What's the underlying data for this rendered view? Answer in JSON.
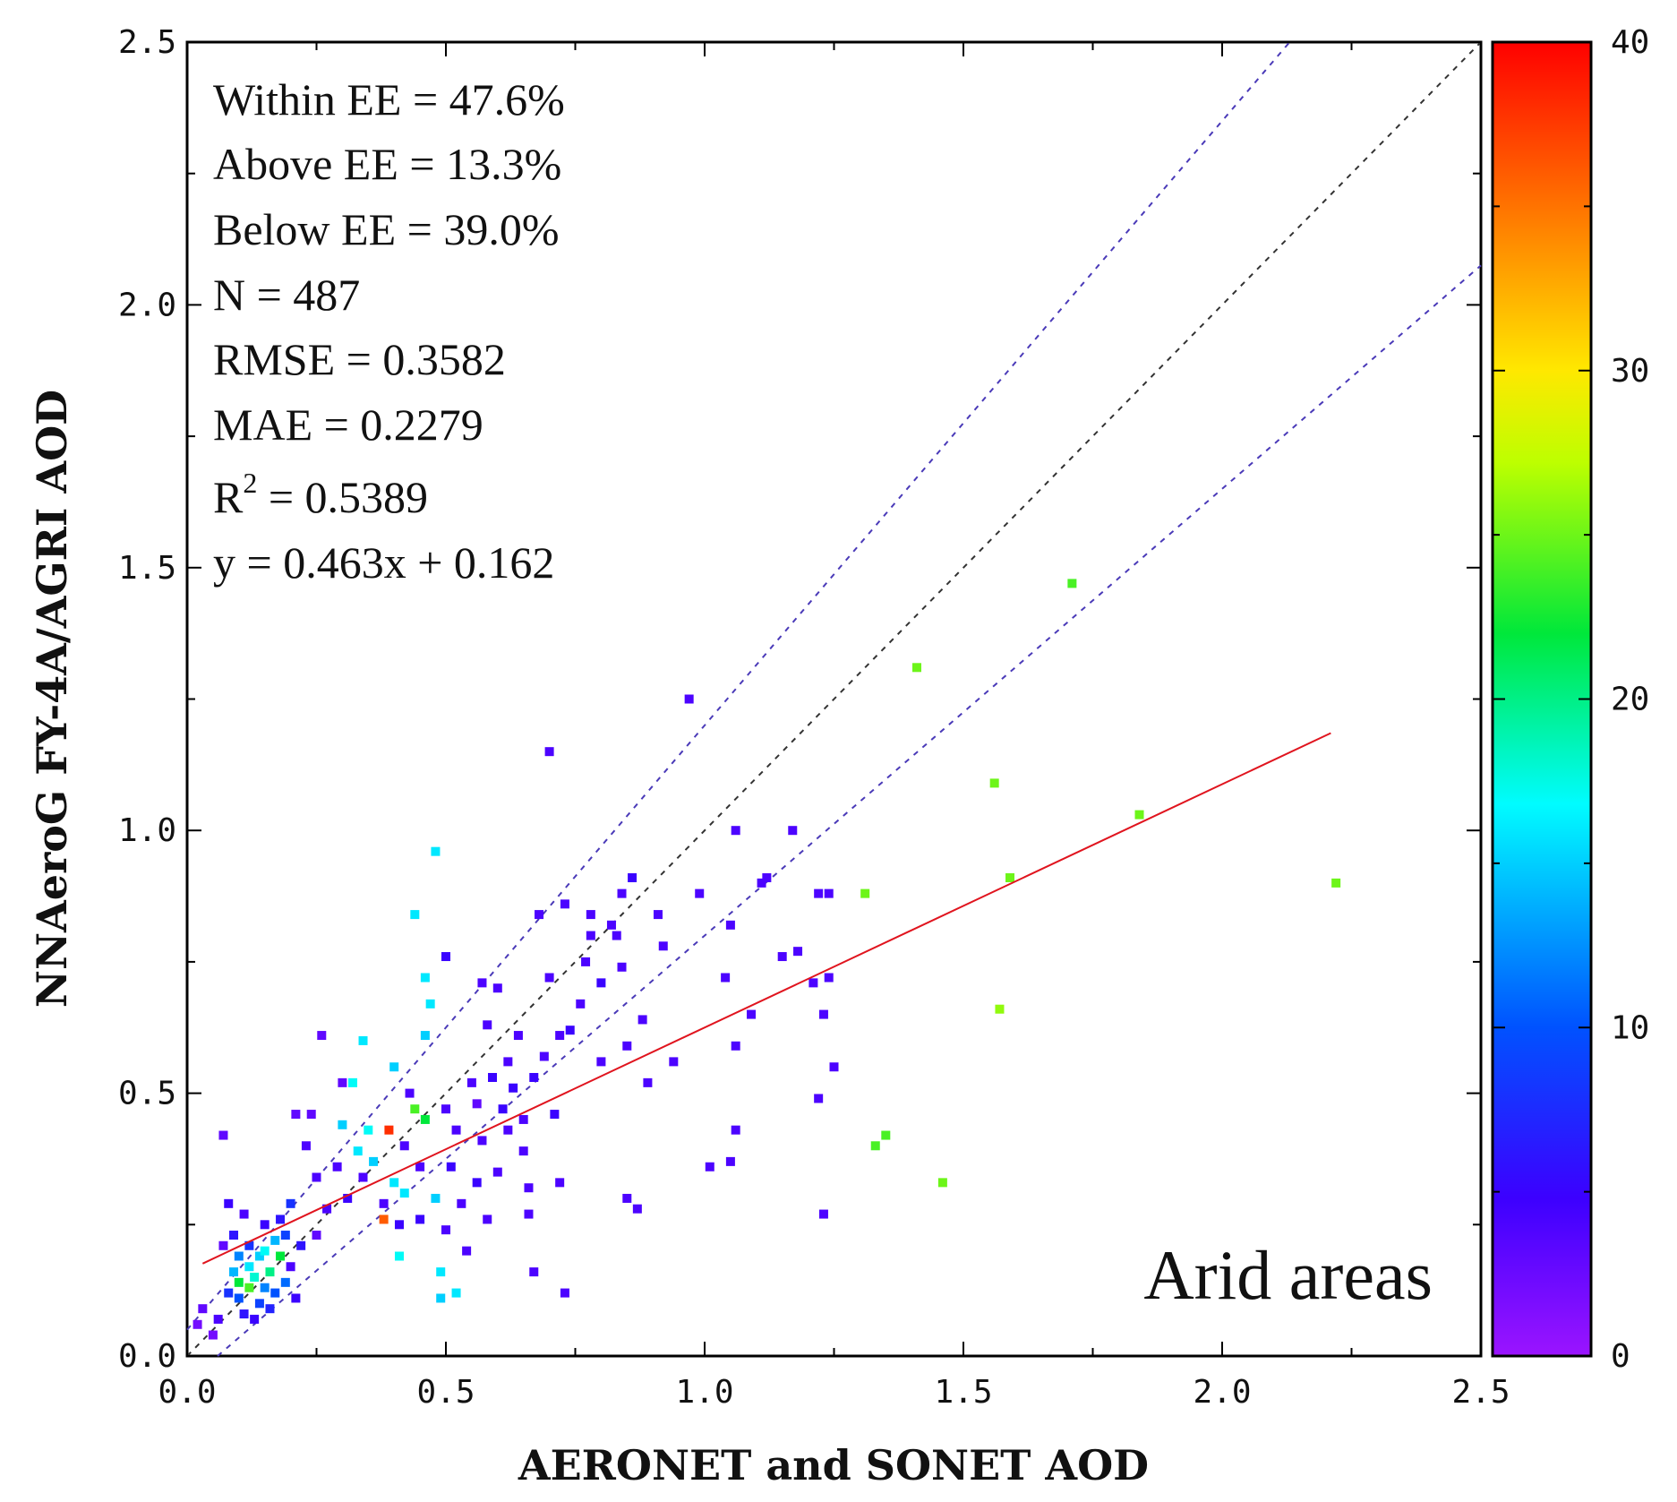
{
  "chart_data": {
    "type": "scatter",
    "xlabel": "AERONET and SONET AOD",
    "ylabel": "NNAeroG FY-4A/AGRI AOD",
    "xlim": [
      0,
      2.5
    ],
    "ylim": [
      0,
      2.5
    ],
    "x_ticks": [
      "0.0",
      "0.5",
      "1.0",
      "1.5",
      "2.0",
      "2.5"
    ],
    "y_ticks": [
      "0.0",
      "0.5",
      "1.0",
      "1.5",
      "2.0",
      "2.5"
    ],
    "region_label": "Arid areas",
    "stats": {
      "within_ee": "Within EE = 47.6%",
      "above_ee": "Above EE = 13.3%",
      "below_ee": "Below EE = 39.0%",
      "n": "N = 487",
      "rmse": "RMSE = 0.3582",
      "mae": "MAE = 0.2279",
      "r2_prefix": "R",
      "r2_sup": "2",
      "r2_value": " = 0.5389",
      "fit": "y = 0.463x + 0.162"
    },
    "fit_line": {
      "slope": 0.463,
      "intercept": 0.162,
      "x_start": 0.03,
      "x_end": 2.21,
      "color": "#e0141e"
    },
    "reference_lines": [
      {
        "name": "one-to-one",
        "slope": 1.0,
        "intercept": 0.0
      },
      {
        "name": "ee-upper",
        "slope": 1.15,
        "intercept": 0.05
      },
      {
        "name": "ee-lower",
        "slope": 0.85,
        "intercept": -0.05
      }
    ],
    "colorbar": {
      "min": 0,
      "max": 40,
      "ticks": [
        "0",
        "10",
        "20",
        "30",
        "40"
      ]
    },
    "points": [
      [
        0.02,
        0.06,
        2
      ],
      [
        0.03,
        0.09,
        3
      ],
      [
        0.05,
        0.04,
        2
      ],
      [
        0.06,
        0.07,
        4
      ],
      [
        0.07,
        0.42,
        3
      ],
      [
        0.07,
        0.21,
        3
      ],
      [
        0.08,
        0.12,
        8
      ],
      [
        0.08,
        0.29,
        5
      ],
      [
        0.09,
        0.16,
        14
      ],
      [
        0.09,
        0.23,
        6
      ],
      [
        0.1,
        0.14,
        22
      ],
      [
        0.1,
        0.19,
        12
      ],
      [
        0.1,
        0.11,
        10
      ],
      [
        0.11,
        0.27,
        4
      ],
      [
        0.11,
        0.08,
        6
      ],
      [
        0.12,
        0.13,
        24
      ],
      [
        0.12,
        0.17,
        16
      ],
      [
        0.12,
        0.21,
        8
      ],
      [
        0.13,
        0.15,
        18
      ],
      [
        0.13,
        0.07,
        5
      ],
      [
        0.14,
        0.19,
        15
      ],
      [
        0.14,
        0.1,
        9
      ],
      [
        0.15,
        0.2,
        17
      ],
      [
        0.15,
        0.13,
        12
      ],
      [
        0.15,
        0.25,
        5
      ],
      [
        0.16,
        0.16,
        20
      ],
      [
        0.16,
        0.09,
        7
      ],
      [
        0.17,
        0.22,
        14
      ],
      [
        0.17,
        0.12,
        10
      ],
      [
        0.18,
        0.19,
        22
      ],
      [
        0.18,
        0.26,
        6
      ],
      [
        0.19,
        0.14,
        11
      ],
      [
        0.19,
        0.23,
        9
      ],
      [
        0.2,
        0.29,
        8
      ],
      [
        0.2,
        0.17,
        4
      ],
      [
        0.21,
        0.46,
        3
      ],
      [
        0.21,
        0.11,
        5
      ],
      [
        0.22,
        0.21,
        6
      ],
      [
        0.23,
        0.4,
        4
      ],
      [
        0.24,
        0.46,
        3
      ],
      [
        0.25,
        0.34,
        4
      ],
      [
        0.25,
        0.23,
        3
      ],
      [
        0.26,
        0.61,
        3
      ],
      [
        0.27,
        0.28,
        4
      ],
      [
        0.29,
        0.36,
        4
      ],
      [
        0.3,
        0.52,
        3
      ],
      [
        0.3,
        0.44,
        15
      ],
      [
        0.31,
        0.3,
        5
      ],
      [
        0.32,
        0.52,
        17
      ],
      [
        0.33,
        0.39,
        16
      ],
      [
        0.34,
        0.6,
        16
      ],
      [
        0.34,
        0.34,
        4
      ],
      [
        0.35,
        0.43,
        17
      ],
      [
        0.36,
        0.37,
        15
      ],
      [
        0.38,
        0.29,
        4
      ],
      [
        0.38,
        0.26,
        36
      ],
      [
        0.39,
        0.43,
        38
      ],
      [
        0.4,
        0.55,
        15
      ],
      [
        0.4,
        0.33,
        16
      ],
      [
        0.41,
        0.19,
        17
      ],
      [
        0.41,
        0.25,
        5
      ],
      [
        0.42,
        0.4,
        4
      ],
      [
        0.42,
        0.31,
        16
      ],
      [
        0.43,
        0.5,
        4
      ],
      [
        0.44,
        0.84,
        16
      ],
      [
        0.44,
        0.47,
        24
      ],
      [
        0.45,
        0.36,
        4
      ],
      [
        0.45,
        0.26,
        5
      ],
      [
        0.46,
        0.72,
        16
      ],
      [
        0.46,
        0.45,
        22
      ],
      [
        0.46,
        0.61,
        15
      ],
      [
        0.47,
        0.67,
        16
      ],
      [
        0.48,
        0.96,
        16
      ],
      [
        0.48,
        0.3,
        15
      ],
      [
        0.49,
        0.16,
        16
      ],
      [
        0.49,
        0.11,
        15
      ],
      [
        0.5,
        0.76,
        5
      ],
      [
        0.5,
        0.47,
        4
      ],
      [
        0.5,
        0.24,
        4
      ],
      [
        0.51,
        0.36,
        5
      ],
      [
        0.52,
        0.12,
        16
      ],
      [
        0.52,
        0.43,
        4
      ],
      [
        0.53,
        0.29,
        4
      ],
      [
        0.54,
        0.2,
        4
      ],
      [
        0.55,
        0.52,
        4
      ],
      [
        0.56,
        0.33,
        5
      ],
      [
        0.56,
        0.48,
        3
      ],
      [
        0.57,
        0.71,
        4
      ],
      [
        0.57,
        0.41,
        4
      ],
      [
        0.58,
        0.63,
        4
      ],
      [
        0.58,
        0.26,
        4
      ],
      [
        0.59,
        0.53,
        5
      ],
      [
        0.6,
        0.7,
        4
      ],
      [
        0.6,
        0.35,
        4
      ],
      [
        0.61,
        0.47,
        5
      ],
      [
        0.62,
        0.56,
        4
      ],
      [
        0.62,
        0.43,
        4
      ],
      [
        0.63,
        0.51,
        5
      ],
      [
        0.64,
        0.61,
        4
      ],
      [
        0.65,
        0.45,
        4
      ],
      [
        0.65,
        0.39,
        4
      ],
      [
        0.66,
        0.32,
        4
      ],
      [
        0.66,
        0.27,
        4
      ],
      [
        0.67,
        0.53,
        5
      ],
      [
        0.67,
        0.16,
        4
      ],
      [
        0.68,
        0.84,
        4
      ],
      [
        0.69,
        0.57,
        4
      ],
      [
        0.7,
        1.15,
        4
      ],
      [
        0.7,
        0.72,
        4
      ],
      [
        0.71,
        0.46,
        5
      ],
      [
        0.72,
        0.33,
        4
      ],
      [
        0.72,
        0.61,
        4
      ],
      [
        0.73,
        0.86,
        4
      ],
      [
        0.73,
        0.12,
        4
      ],
      [
        0.74,
        0.62,
        5
      ],
      [
        0.76,
        0.67,
        4
      ],
      [
        0.77,
        0.75,
        4
      ],
      [
        0.78,
        0.8,
        4
      ],
      [
        0.78,
        0.84,
        4
      ],
      [
        0.8,
        0.71,
        5
      ],
      [
        0.8,
        0.56,
        4
      ],
      [
        0.82,
        0.82,
        4
      ],
      [
        0.83,
        0.8,
        4
      ],
      [
        0.84,
        0.88,
        4
      ],
      [
        0.84,
        0.74,
        4
      ],
      [
        0.85,
        0.59,
        4
      ],
      [
        0.85,
        0.3,
        4
      ],
      [
        0.86,
        0.91,
        5
      ],
      [
        0.87,
        0.28,
        4
      ],
      [
        0.88,
        0.64,
        4
      ],
      [
        0.89,
        0.52,
        4
      ],
      [
        0.91,
        0.84,
        4
      ],
      [
        0.92,
        0.78,
        4
      ],
      [
        0.94,
        0.56,
        4
      ],
      [
        0.97,
        1.25,
        4
      ],
      [
        0.99,
        0.88,
        4
      ],
      [
        1.01,
        0.36,
        4
      ],
      [
        1.04,
        0.72,
        4
      ],
      [
        1.05,
        0.37,
        4
      ],
      [
        1.05,
        0.82,
        4
      ],
      [
        1.06,
        1.0,
        4
      ],
      [
        1.06,
        0.43,
        4
      ],
      [
        1.06,
        0.59,
        4
      ],
      [
        1.09,
        0.65,
        4
      ],
      [
        1.11,
        0.9,
        4
      ],
      [
        1.12,
        0.91,
        4
      ],
      [
        1.15,
        0.76,
        4
      ],
      [
        1.17,
        1.0,
        4
      ],
      [
        1.18,
        0.77,
        4
      ],
      [
        1.21,
        0.71,
        4
      ],
      [
        1.22,
        0.88,
        4
      ],
      [
        1.22,
        0.49,
        4
      ],
      [
        1.23,
        0.65,
        4
      ],
      [
        1.23,
        0.27,
        4
      ],
      [
        1.24,
        0.88,
        4
      ],
      [
        1.24,
        0.72,
        4
      ],
      [
        1.25,
        0.55,
        4
      ],
      [
        1.31,
        0.88,
        25
      ],
      [
        1.33,
        0.4,
        24
      ],
      [
        1.35,
        0.42,
        24
      ],
      [
        1.41,
        1.31,
        25
      ],
      [
        1.46,
        0.33,
        25
      ],
      [
        1.56,
        1.09,
        25
      ],
      [
        1.57,
        0.66,
        26
      ],
      [
        1.59,
        0.91,
        25
      ],
      [
        1.71,
        1.47,
        24
      ],
      [
        1.84,
        1.03,
        25
      ],
      [
        2.22,
        0.9,
        25
      ]
    ]
  }
}
